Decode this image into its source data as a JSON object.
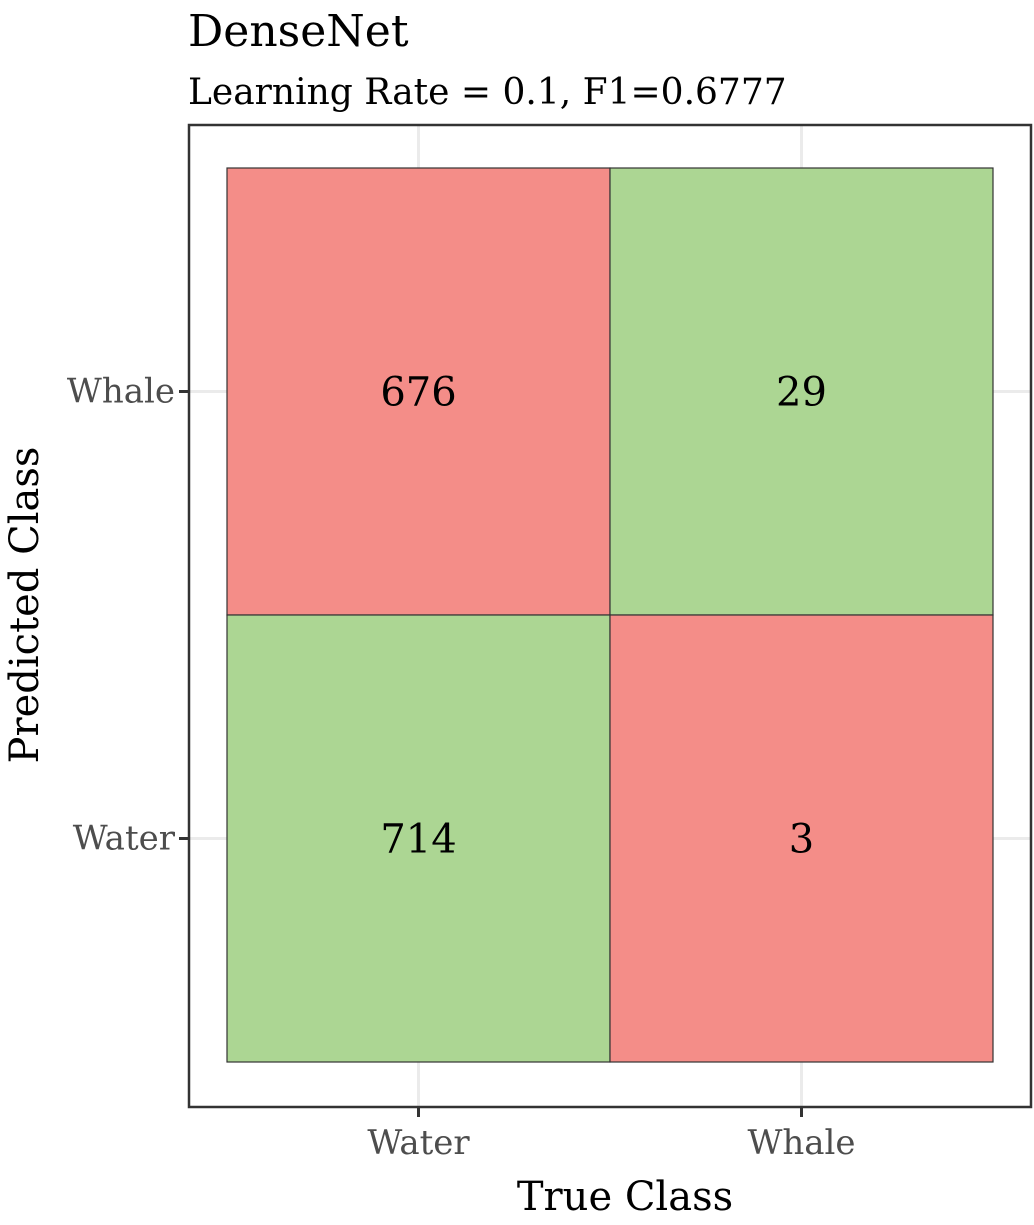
{
  "chart_data": {
    "type": "heatmap",
    "title": "DenseNet",
    "subtitle": "Learning Rate = 0.1, F1=0.6777",
    "xlabel": "True Class",
    "ylabel": "Predicted Class",
    "x_categories": [
      "Water",
      "Whale"
    ],
    "y_categories": [
      "Water",
      "Whale"
    ],
    "cells": [
      {
        "true": "Water",
        "predicted": "Whale",
        "value": 676,
        "correct": false
      },
      {
        "true": "Whale",
        "predicted": "Whale",
        "value": 29,
        "correct": true
      },
      {
        "true": "Water",
        "predicted": "Water",
        "value": 714,
        "correct": true
      },
      {
        "true": "Whale",
        "predicted": "Water",
        "value": 3,
        "correct": false
      }
    ],
    "colors": {
      "correct": "#acd693",
      "incorrect": "#f48d88",
      "grid": "#ebebeb",
      "border": "#333333"
    },
    "grid": true,
    "legend": "none"
  }
}
